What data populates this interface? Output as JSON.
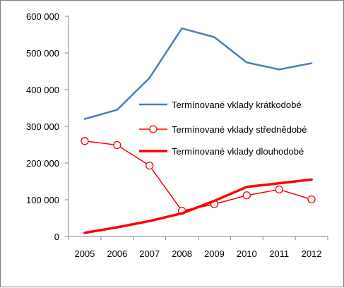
{
  "chart_data": {
    "type": "line",
    "x": [
      "2005",
      "2006",
      "2007",
      "2008",
      "2009",
      "2010",
      "2011",
      "2012"
    ],
    "ylim": [
      0,
      600000
    ],
    "yticks": [
      0,
      100000,
      200000,
      300000,
      400000,
      500000,
      600000
    ],
    "ytick_labels": [
      "0",
      "100 000",
      "200 000",
      "300 000",
      "400 000",
      "500 000",
      "600 000"
    ],
    "grid": false,
    "legend_position": "right",
    "series": [
      {
        "name": "Termínované vklady krátkodobé",
        "values": [
          320000,
          345000,
          432000,
          567000,
          543000,
          474000,
          455000,
          472000
        ],
        "color": "#4a7ebb",
        "style": "line"
      },
      {
        "name": "Termínované vklady střednědobé",
        "values": [
          260000,
          249000,
          193000,
          70000,
          88000,
          112000,
          128000,
          101000
        ],
        "color": "#ff0000",
        "style": "line-circle-markers"
      },
      {
        "name": "Termínované vklady dlouhodobé",
        "values": [
          10000,
          25000,
          42000,
          63000,
          97000,
          135000,
          145000,
          155000
        ],
        "color": "#ff0000",
        "style": "thick-line"
      }
    ]
  }
}
